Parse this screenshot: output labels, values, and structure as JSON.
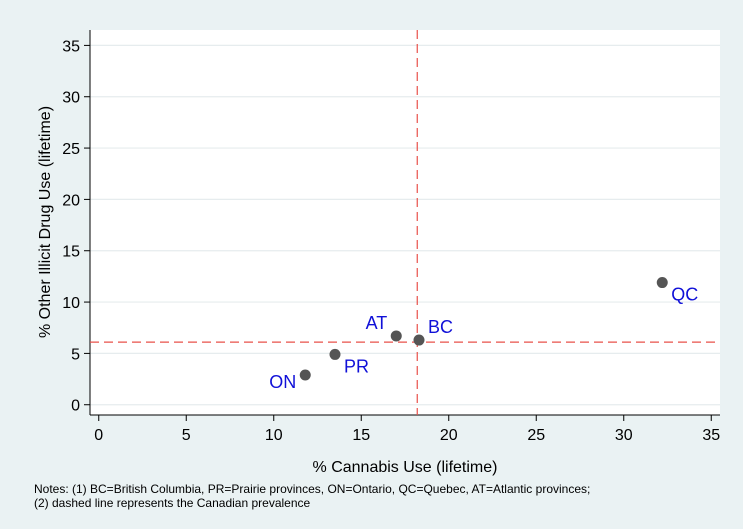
{
  "chart_data": {
    "type": "scatter",
    "title": "",
    "xlabel": "% Cannabis Use (lifetime)",
    "ylabel": "% Other Illicit Drug Use (lifetime)",
    "xlim": [
      -0.5,
      35.5
    ],
    "ylim": [
      -1,
      36.5
    ],
    "xticks": [
      0,
      5,
      10,
      15,
      20,
      25,
      30,
      35
    ],
    "yticks": [
      0,
      5,
      10,
      15,
      20,
      25,
      30,
      35
    ],
    "grid": true,
    "points": [
      {
        "label": "ON",
        "x": 11.8,
        "y": 2.9,
        "label_pos": "left"
      },
      {
        "label": "PR",
        "x": 13.5,
        "y": 4.9,
        "label_pos": "right"
      },
      {
        "label": "AT",
        "x": 17.0,
        "y": 6.7,
        "label_pos": "left"
      },
      {
        "label": "BC",
        "x": 18.3,
        "y": 6.3,
        "label_pos": "right"
      },
      {
        "label": "QC",
        "x": 32.2,
        "y": 11.9,
        "label_pos": "right"
      }
    ],
    "reference_lines": {
      "x": 18.2,
      "y": 6.1,
      "style": "dashed",
      "color": "#e8514a"
    },
    "colors": {
      "marker": "#555555",
      "label": "#1010d8",
      "grid": "#e6ecee",
      "background": "#eaf2f3",
      "plot_background": "#ffffff"
    }
  },
  "notes": {
    "line1": "Notes: (1) BC=British Columbia, PR=Prairie provinces, ON=Ontario, QC=Quebec, AT=Atlantic provinces;",
    "line2": "(2) dashed line represents the Canadian prevalence"
  }
}
